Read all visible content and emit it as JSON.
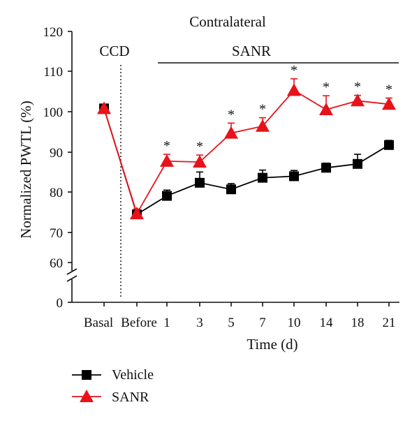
{
  "chart_data": {
    "type": "line",
    "title": "Contralateral",
    "treatment_label": "SANR",
    "ccd_label": "CCD",
    "xlabel": "Time (d)",
    "ylabel": "Normalized PWTL (%)",
    "categories": [
      "Basal",
      "Before",
      "1",
      "3",
      "5",
      "7",
      "10",
      "14",
      "18",
      "21"
    ],
    "y_ticks": [
      "120",
      "110",
      "100",
      "90",
      "80",
      "70",
      "60",
      "0"
    ],
    "ylim": [
      60,
      120
    ],
    "y_break": true,
    "series": [
      {
        "name": "Vehicle",
        "color": "#000000",
        "marker": "square",
        "values": [
          100,
          72.5,
          77.3,
          80.7,
          79,
          82,
          82.4,
          84.6,
          85.6,
          90.5
        ],
        "errors": [
          0.5,
          1.2,
          1.5,
          2.8,
          1.5,
          2.0,
          1.5,
          1.2,
          2.5,
          1.2
        ]
      },
      {
        "name": "SANR",
        "color": "#e8121b",
        "marker": "triangle",
        "values": [
          100,
          72.7,
          86.3,
          86.1,
          93.6,
          95.4,
          104.7,
          99.7,
          102.0,
          101.1
        ],
        "errors": [
          0.5,
          1.2,
          1.8,
          1.8,
          2.6,
          2.2,
          3.0,
          3.6,
          1.4,
          1.6
        ]
      }
    ],
    "significance": [
      "",
      "",
      "*",
      "*",
      "*",
      "*",
      "*",
      "*",
      "*",
      "*"
    ],
    "legend": [
      "Vehicle",
      "SANR"
    ],
    "legend_position": "bottom-left"
  }
}
